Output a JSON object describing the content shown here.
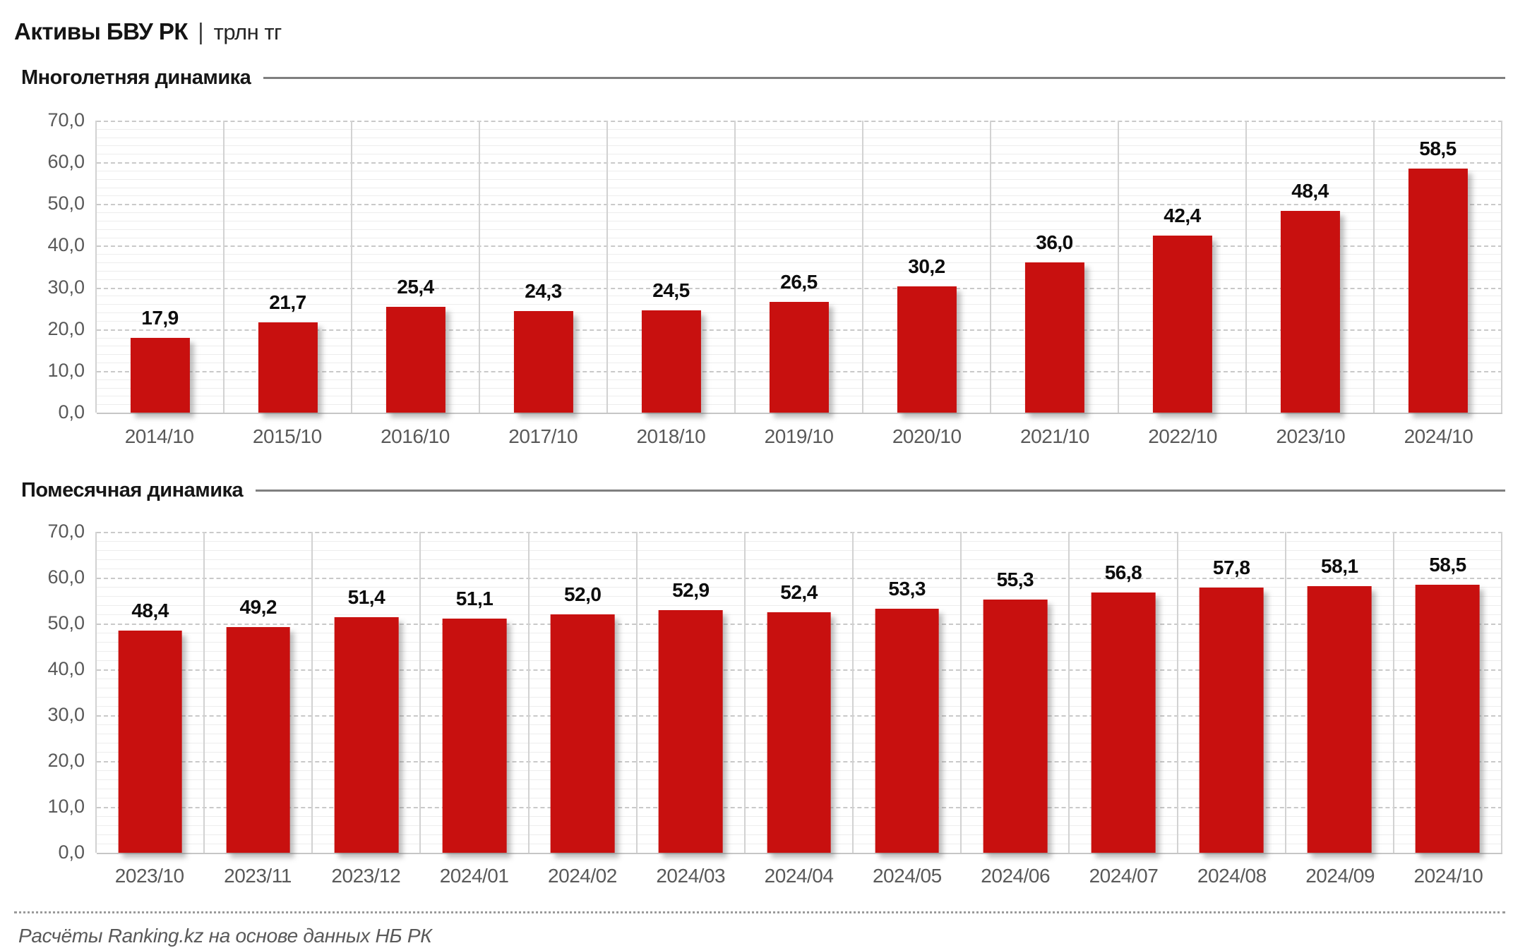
{
  "header": {
    "title": "Активы БВУ РК",
    "separator": "|",
    "unit": "трлн тг"
  },
  "colors": {
    "bar": "#c8100f",
    "value_label": "#0d0d0d",
    "axis_text": "#595959"
  },
  "chart_data": [
    {
      "type": "bar",
      "title": "Многолетняя динамика",
      "categories": [
        "2014/10",
        "2015/10",
        "2016/10",
        "2017/10",
        "2018/10",
        "2019/10",
        "2020/10",
        "2021/10",
        "2022/10",
        "2023/10",
        "2024/10"
      ],
      "values": [
        17.9,
        21.7,
        25.4,
        24.3,
        24.5,
        26.5,
        30.2,
        36.0,
        42.4,
        48.4,
        58.5
      ],
      "value_labels": [
        "17,9",
        "21,7",
        "25,4",
        "24,3",
        "24,5",
        "26,5",
        "30,2",
        "36,0",
        "42,4",
        "48,4",
        "58,5"
      ],
      "xlabel": "",
      "ylabel": "",
      "ylim": [
        0,
        70
      ],
      "ytick_step": 10,
      "minor_step": 2,
      "ytick_labels": [
        "0,0",
        "10,0",
        "20,0",
        "30,0",
        "40,0",
        "50,0",
        "60,0",
        "70,0"
      ],
      "grid": "horizontal major dashed + minor solid, vertical category separators",
      "legend": null
    },
    {
      "type": "bar",
      "title": "Помесячная динамика",
      "categories": [
        "2023/10",
        "2023/11",
        "2023/12",
        "2024/01",
        "2024/02",
        "2024/03",
        "2024/04",
        "2024/05",
        "2024/06",
        "2024/07",
        "2024/08",
        "2024/09",
        "2024/10"
      ],
      "values": [
        48.4,
        49.2,
        51.4,
        51.1,
        52.0,
        52.9,
        52.4,
        53.3,
        55.3,
        56.8,
        57.8,
        58.1,
        58.5
      ],
      "value_labels": [
        "48,4",
        "49,2",
        "51,4",
        "51,1",
        "52,0",
        "52,9",
        "52,4",
        "53,3",
        "55,3",
        "56,8",
        "57,8",
        "58,1",
        "58,5"
      ],
      "xlabel": "",
      "ylabel": "",
      "ylim": [
        0,
        70
      ],
      "ytick_step": 10,
      "minor_step": 2,
      "ytick_labels": [
        "0,0",
        "10,0",
        "20,0",
        "30,0",
        "40,0",
        "50,0",
        "60,0",
        "70,0"
      ],
      "grid": "horizontal major dashed + minor solid, vertical category separators",
      "legend": null
    }
  ],
  "footer": {
    "text": "Расчёты Ranking.kz на основе данных НБ РК"
  }
}
